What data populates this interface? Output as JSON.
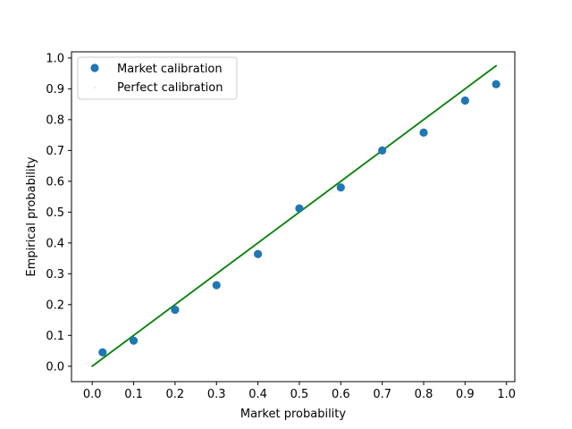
{
  "chart_data": {
    "type": "scatter",
    "title": "",
    "xlabel": "Market probability",
    "ylabel": "Empirical probability",
    "xlim": [
      -0.05,
      1.02
    ],
    "ylim": [
      -0.05,
      1.02
    ],
    "xticks": [
      "0.0",
      "0.1",
      "0.2",
      "0.3",
      "0.4",
      "0.5",
      "0.6",
      "0.7",
      "0.8",
      "0.9",
      "1.0"
    ],
    "yticks": [
      "0.0",
      "0.1",
      "0.2",
      "0.3",
      "0.4",
      "0.5",
      "0.6",
      "0.7",
      "0.8",
      "0.9",
      "1.0"
    ],
    "grid": false,
    "legend_position": "upper-left",
    "series": [
      {
        "name": "Market calibration",
        "kind": "scatter",
        "color": "#1f77b4",
        "points": [
          {
            "x": 0.025,
            "y": 0.045
          },
          {
            "x": 0.1,
            "y": 0.083
          },
          {
            "x": 0.2,
            "y": 0.183
          },
          {
            "x": 0.3,
            "y": 0.263
          },
          {
            "x": 0.4,
            "y": 0.364
          },
          {
            "x": 0.5,
            "y": 0.512
          },
          {
            "x": 0.6,
            "y": 0.58
          },
          {
            "x": 0.7,
            "y": 0.7
          },
          {
            "x": 0.8,
            "y": 0.758
          },
          {
            "x": 0.9,
            "y": 0.862
          },
          {
            "x": 0.975,
            "y": 0.915
          }
        ]
      },
      {
        "name": "Perfect calibration",
        "kind": "line",
        "color": "#008000",
        "points": [
          {
            "x": 0.0,
            "y": 0.0
          },
          {
            "x": 0.975,
            "y": 0.975
          }
        ]
      }
    ]
  }
}
